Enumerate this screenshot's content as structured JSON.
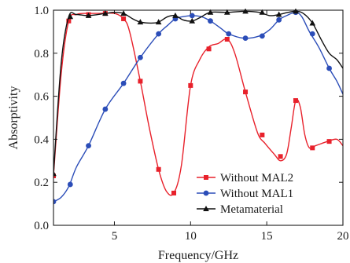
{
  "chart_data": {
    "type": "line",
    "xlabel": "Frequency/GHz",
    "ylabel": "Absorptivity",
    "xlim": [
      1,
      20
    ],
    "ylim": [
      0.0,
      1.0
    ],
    "x_ticks": [
      5,
      10,
      15,
      20
    ],
    "x_tick_labels": [
      "5",
      "10",
      "15",
      "20"
    ],
    "y_ticks": [
      0.0,
      0.2,
      0.4,
      0.6,
      0.8,
      1.0
    ],
    "y_tick_labels": [
      "0.0",
      "0.2",
      "0.4",
      "0.6",
      "0.8",
      "1.0"
    ],
    "grid": false,
    "legend_position": "bottom-right",
    "series": [
      {
        "name": "Without MAL2",
        "color": "#e8212b",
        "marker": "square",
        "curve_x": [
          1.0,
          1.5,
          2.0,
          2.5,
          3.0,
          4.0,
          5.0,
          5.6,
          6.0,
          6.7,
          7.3,
          7.9,
          8.4,
          8.9,
          9.4,
          10.0,
          10.6,
          11.2,
          11.8,
          12.4,
          12.9,
          13.6,
          14.4,
          14.9,
          15.5,
          15.9,
          16.3,
          16.6,
          16.9,
          17.2,
          17.5,
          17.8,
          18.2,
          19.0,
          19.6,
          20.0
        ],
        "curve_y": [
          0.23,
          0.7,
          0.95,
          0.98,
          0.985,
          0.985,
          0.985,
          0.96,
          0.9,
          0.67,
          0.45,
          0.26,
          0.16,
          0.15,
          0.28,
          0.65,
          0.77,
          0.83,
          0.845,
          0.865,
          0.8,
          0.62,
          0.43,
          0.38,
          0.33,
          0.3,
          0.33,
          0.45,
          0.58,
          0.55,
          0.42,
          0.36,
          0.37,
          0.39,
          0.4,
          0.37
        ],
        "marker_x": [
          1.0,
          2.0,
          3.3,
          4.4,
          5.6,
          6.7,
          7.9,
          8.9,
          10.0,
          11.2,
          12.4,
          13.6,
          14.7,
          15.9,
          16.9,
          18.0,
          19.1
        ],
        "marker_y": [
          0.23,
          0.95,
          0.98,
          0.985,
          0.96,
          0.67,
          0.26,
          0.15,
          0.65,
          0.82,
          0.865,
          0.62,
          0.42,
          0.32,
          0.58,
          0.36,
          0.39
        ]
      },
      {
        "name": "Without MAL1",
        "color": "#2b4db8",
        "marker": "circle",
        "curve_x": [
          1.0,
          1.5,
          2.0,
          2.5,
          3.3,
          4.4,
          5.6,
          6.7,
          7.9,
          8.5,
          9.0,
          9.5,
          10.1,
          10.7,
          11.3,
          12.0,
          12.5,
          13.5,
          14.5,
          15.2,
          15.8,
          16.3,
          16.9,
          17.3,
          17.8,
          18.4,
          19.1,
          19.6,
          20.0
        ],
        "curve_y": [
          0.11,
          0.13,
          0.18,
          0.27,
          0.37,
          0.54,
          0.66,
          0.78,
          0.89,
          0.93,
          0.96,
          0.97,
          0.975,
          0.97,
          0.95,
          0.915,
          0.89,
          0.87,
          0.88,
          0.91,
          0.955,
          0.975,
          0.99,
          0.97,
          0.9,
          0.83,
          0.73,
          0.67,
          0.61
        ],
        "marker_x": [
          1.0,
          2.1,
          3.3,
          4.4,
          5.6,
          6.7,
          7.9,
          9.0,
          10.1,
          11.3,
          12.5,
          13.6,
          14.7,
          15.8,
          16.9,
          18.0,
          19.1
        ],
        "marker_y": [
          0.11,
          0.19,
          0.37,
          0.54,
          0.66,
          0.78,
          0.89,
          0.96,
          0.975,
          0.95,
          0.89,
          0.87,
          0.88,
          0.955,
          0.99,
          0.89,
          0.73
        ]
      },
      {
        "name": "Metamaterial",
        "color": "#111111",
        "marker": "triangle",
        "curve_x": [
          1.0,
          1.5,
          2.0,
          2.5,
          3.3,
          4.4,
          5.0,
          5.6,
          6.2,
          6.7,
          7.4,
          7.9,
          8.5,
          9.0,
          9.5,
          10.1,
          10.6,
          11.3,
          12.4,
          13.6,
          14.5,
          15.2,
          15.8,
          16.4,
          16.9,
          17.4,
          18.0,
          18.6,
          19.1,
          19.6,
          20.0
        ],
        "curve_y": [
          0.24,
          0.75,
          0.97,
          0.98,
          0.975,
          0.985,
          0.99,
          0.985,
          0.96,
          0.945,
          0.94,
          0.945,
          0.97,
          0.975,
          0.955,
          0.95,
          0.965,
          0.99,
          0.99,
          0.995,
          0.99,
          0.975,
          0.98,
          0.99,
          0.995,
          0.985,
          0.94,
          0.86,
          0.8,
          0.77,
          0.73
        ],
        "marker_x": [
          1.0,
          2.1,
          3.3,
          4.4,
          5.6,
          6.7,
          7.9,
          9.0,
          10.1,
          11.3,
          12.4,
          13.6,
          14.7,
          15.8,
          16.9,
          18.0
        ],
        "marker_y": [
          0.24,
          0.97,
          0.975,
          0.985,
          0.985,
          0.945,
          0.945,
          0.975,
          0.95,
          0.99,
          0.99,
          0.995,
          0.99,
          0.98,
          0.995,
          0.94
        ]
      }
    ]
  }
}
